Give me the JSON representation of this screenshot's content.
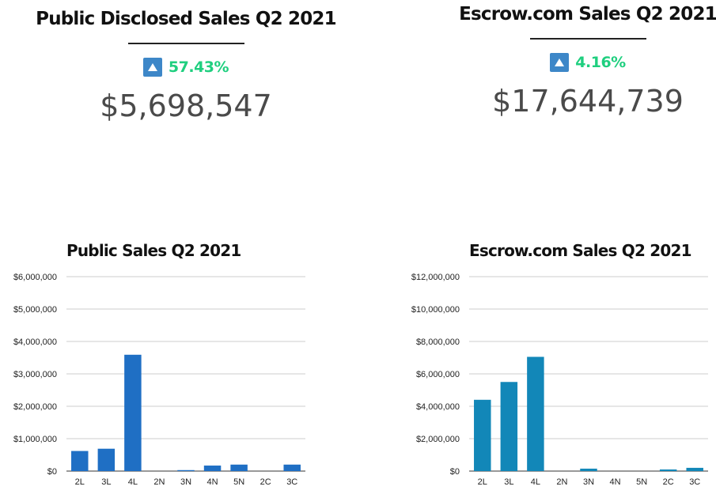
{
  "kpis": [
    {
      "title": "Public Disclosed Sales Q2 2021",
      "change": "57.43%",
      "value": "$5,698,547",
      "icon": "triangle-up-icon"
    },
    {
      "title": "Escrow.com Sales Q2 2021",
      "change": "4.16%",
      "value": "$17,644,739",
      "icon": "triangle-up-icon"
    }
  ],
  "colors": {
    "public_bar": "#1f6fc4",
    "escrow_bar": "#1287b8",
    "change_up": "#1fcf7f",
    "icon_bg": "#3d87c8"
  },
  "chart_data": [
    {
      "type": "bar",
      "title": "Public Sales Q2 2021",
      "categories": [
        "2L",
        "3L",
        "4L",
        "2N",
        "3N",
        "4N",
        "5N",
        "2C",
        "3C"
      ],
      "values": [
        620000,
        690000,
        3590000,
        0,
        30000,
        170000,
        200000,
        0,
        200000
      ],
      "ylim": [
        0,
        6000000
      ],
      "yticks": [
        0,
        1000000,
        2000000,
        3000000,
        4000000,
        5000000,
        6000000
      ],
      "ytick_labels": [
        "$0",
        "$1,000,000",
        "$2,000,000",
        "$3,000,000",
        "$4,000,000",
        "$5,000,000",
        "$6,000,000"
      ],
      "grid": true
    },
    {
      "type": "bar",
      "title": "Escrow.com Sales Q2 2021",
      "categories": [
        "2L",
        "3L",
        "4L",
        "2N",
        "3N",
        "4N",
        "5N",
        "2C",
        "3C"
      ],
      "values": [
        4400000,
        5500000,
        7050000,
        0,
        150000,
        0,
        0,
        100000,
        200000
      ],
      "ylim": [
        0,
        12000000
      ],
      "yticks": [
        0,
        2000000,
        4000000,
        6000000,
        8000000,
        10000000,
        12000000
      ],
      "ytick_labels": [
        "$0",
        "$2,000,000",
        "$4,000,000",
        "$6,000,000",
        "$8,000,000",
        "$10,000,000",
        "$12,000,000"
      ],
      "grid": true
    }
  ]
}
